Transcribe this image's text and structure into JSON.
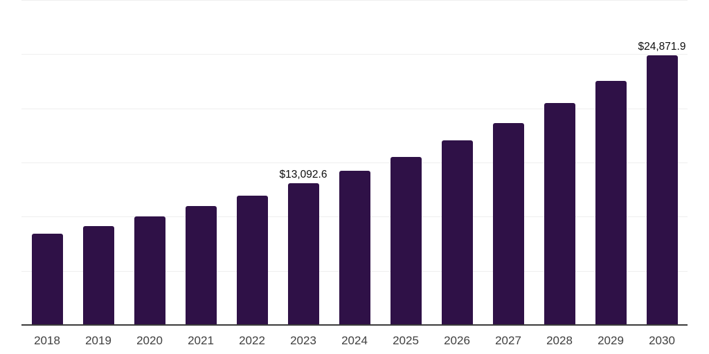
{
  "chart_data": {
    "type": "bar",
    "title": "",
    "xlabel": "",
    "ylabel": "",
    "categories": [
      "2018",
      "2019",
      "2020",
      "2021",
      "2022",
      "2023",
      "2024",
      "2025",
      "2026",
      "2027",
      "2028",
      "2029",
      "2030"
    ],
    "values": [
      8430,
      9130,
      10020,
      10980,
      11940,
      13092.6,
      14240,
      15520,
      17050,
      18650,
      20500,
      22540,
      24871.9
    ],
    "data_labels": [
      "",
      "",
      "",
      "",
      "",
      "$13,092.6",
      "",
      "",
      "",
      "",
      "",
      "",
      "$24,871.9"
    ],
    "ylim": [
      0,
      30000
    ],
    "gridline_step": 5000,
    "grid": true,
    "legend": false,
    "y_axis_labels_visible": false,
    "colors": {
      "bar": "#2F1147",
      "gridline": "#efefef",
      "axis_line": "#3a3a3a",
      "tick_label": "#3f3f3f",
      "data_label": "#0d0d0d",
      "background": "#ffffff"
    }
  }
}
